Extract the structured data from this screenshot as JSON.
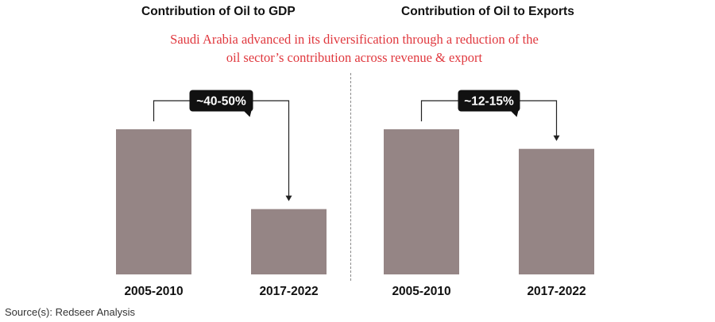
{
  "header": {
    "left_title": "Contribution of Oil to GDP",
    "right_title": "Contribution of Oil to Exports",
    "subtitle_line1": "Saudi Arabia advanced in its diversification through a reduction of the",
    "subtitle_line2": "oil sector’s contribution across revenue & export"
  },
  "footer": {
    "source": "Source(s): Redseer Analysis"
  },
  "colors": {
    "bar": "#958585",
    "subtitle": "#e0383e",
    "callout_bg": "#111111",
    "callout_text": "#ffffff"
  },
  "chart_data": [
    {
      "type": "bar",
      "title": "Contribution of Oil to GDP",
      "categories": [
        "2005-2010",
        "2017-2022"
      ],
      "values": [
        100,
        45
      ],
      "annotation": "~40-50%",
      "ylim": [
        0,
        100
      ],
      "grid": false
    },
    {
      "type": "bar",
      "title": "Contribution of Oil to Exports",
      "categories": [
        "2005-2010",
        "2017-2022"
      ],
      "values": [
        100,
        86.5
      ],
      "annotation": "~12-15%",
      "ylim": [
        0,
        100
      ],
      "grid": false
    }
  ]
}
